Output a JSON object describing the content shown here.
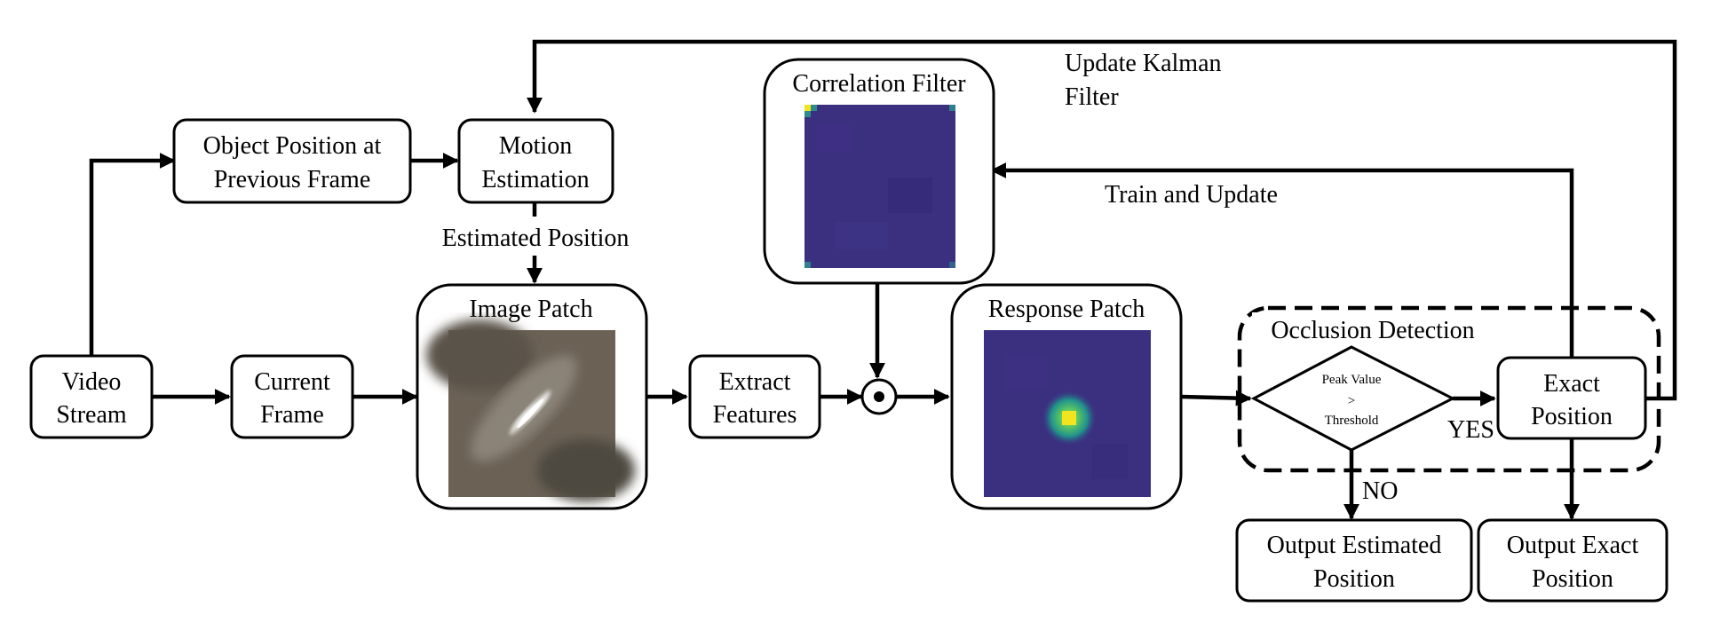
{
  "nodes": {
    "video_stream": [
      "Video",
      "Stream"
    ],
    "object_position": [
      "Object Position at",
      "Previous Frame"
    ],
    "motion_estimation": [
      "Motion",
      "Estimation"
    ],
    "current_frame": [
      "Current",
      "Frame"
    ],
    "image_patch": "Image Patch",
    "extract_features": [
      "Extract",
      "Features"
    ],
    "correlation_filter": "Correlation Filter",
    "response_patch": "Response Patch",
    "occlusion_detection": "Occlusion Detection",
    "decision": [
      "Peak Value",
      ">",
      "Threshold"
    ],
    "exact_position": [
      "Exact",
      "Position"
    ],
    "output_estimated": [
      "Output Estimated",
      "Position"
    ],
    "output_exact": [
      "Output Exact",
      "Position"
    ]
  },
  "edge_labels": {
    "estimated_position": "Estimated Position",
    "update_kalman": [
      "Update Kalman",
      "Filter"
    ],
    "train_update": "Train and Update",
    "yes": "YES",
    "no": "NO"
  },
  "colors": {
    "heatmap_background": "#3b2f80",
    "heatmap_peak": "#f2e51f",
    "patch_background": "#6b6155"
  }
}
